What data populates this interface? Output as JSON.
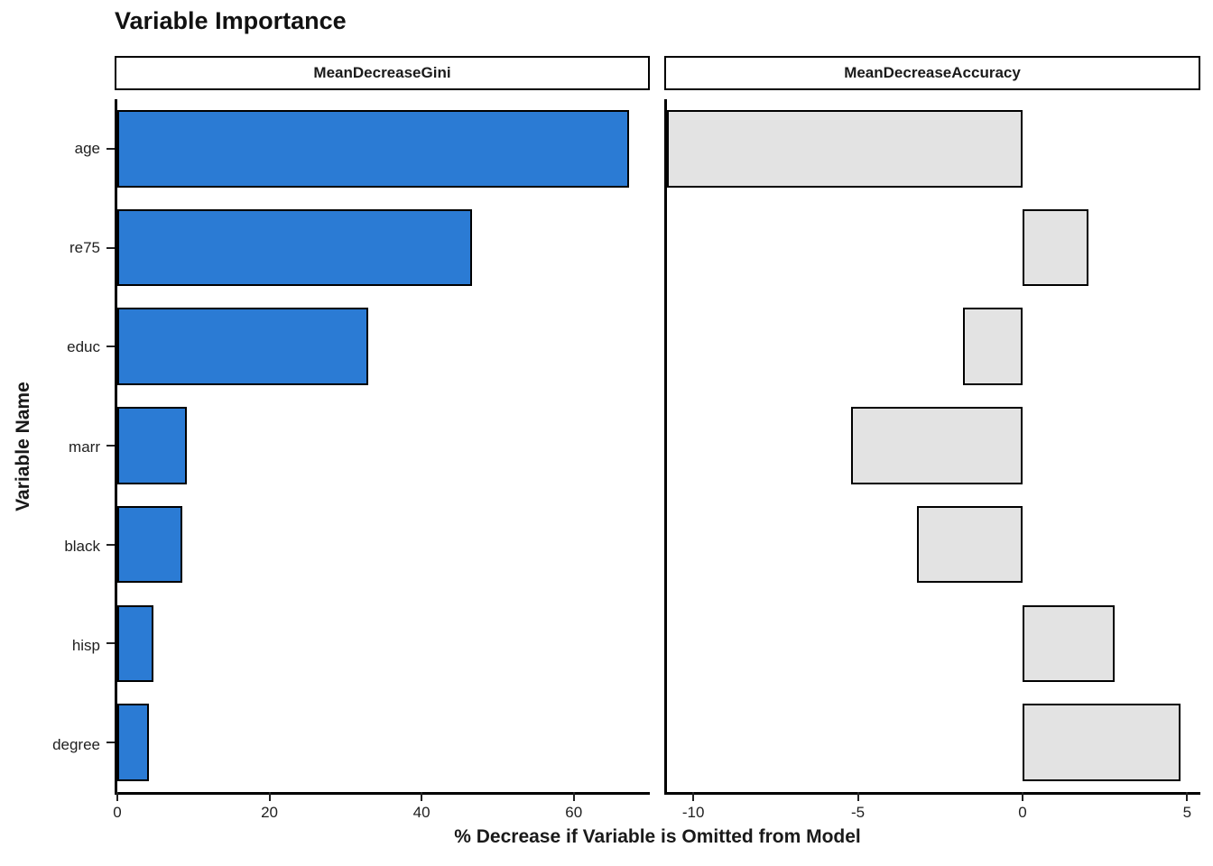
{
  "chart_data": {
    "type": "bar",
    "orientation": "horizontal",
    "title": "Variable Importance",
    "xlabel": "% Decrease if Variable is Omitted from Model",
    "ylabel": "Variable Name",
    "categories": [
      "age",
      "re75",
      "educ",
      "marr",
      "black",
      "hisp",
      "degree"
    ],
    "grid": false,
    "legend": false,
    "bar_stroke": "#000000",
    "facets": [
      {
        "label": "MeanDecreaseGini",
        "xlim": [
          0,
          70
        ],
        "x_ticks": [
          0,
          20,
          40,
          60
        ],
        "bar_fill": "#2B7BD4",
        "values": [
          67.3,
          46.6,
          33.0,
          9.1,
          8.6,
          4.7,
          4.2
        ]
      },
      {
        "label": "MeanDecreaseAccuracy",
        "xlim": [
          -10.8,
          5.4
        ],
        "x_ticks": [
          -10,
          -5,
          0,
          5
        ],
        "bar_fill": "#E3E3E3",
        "values": [
          -10.8,
          2.0,
          -1.8,
          -5.2,
          -3.2,
          2.8,
          4.8
        ]
      }
    ]
  }
}
